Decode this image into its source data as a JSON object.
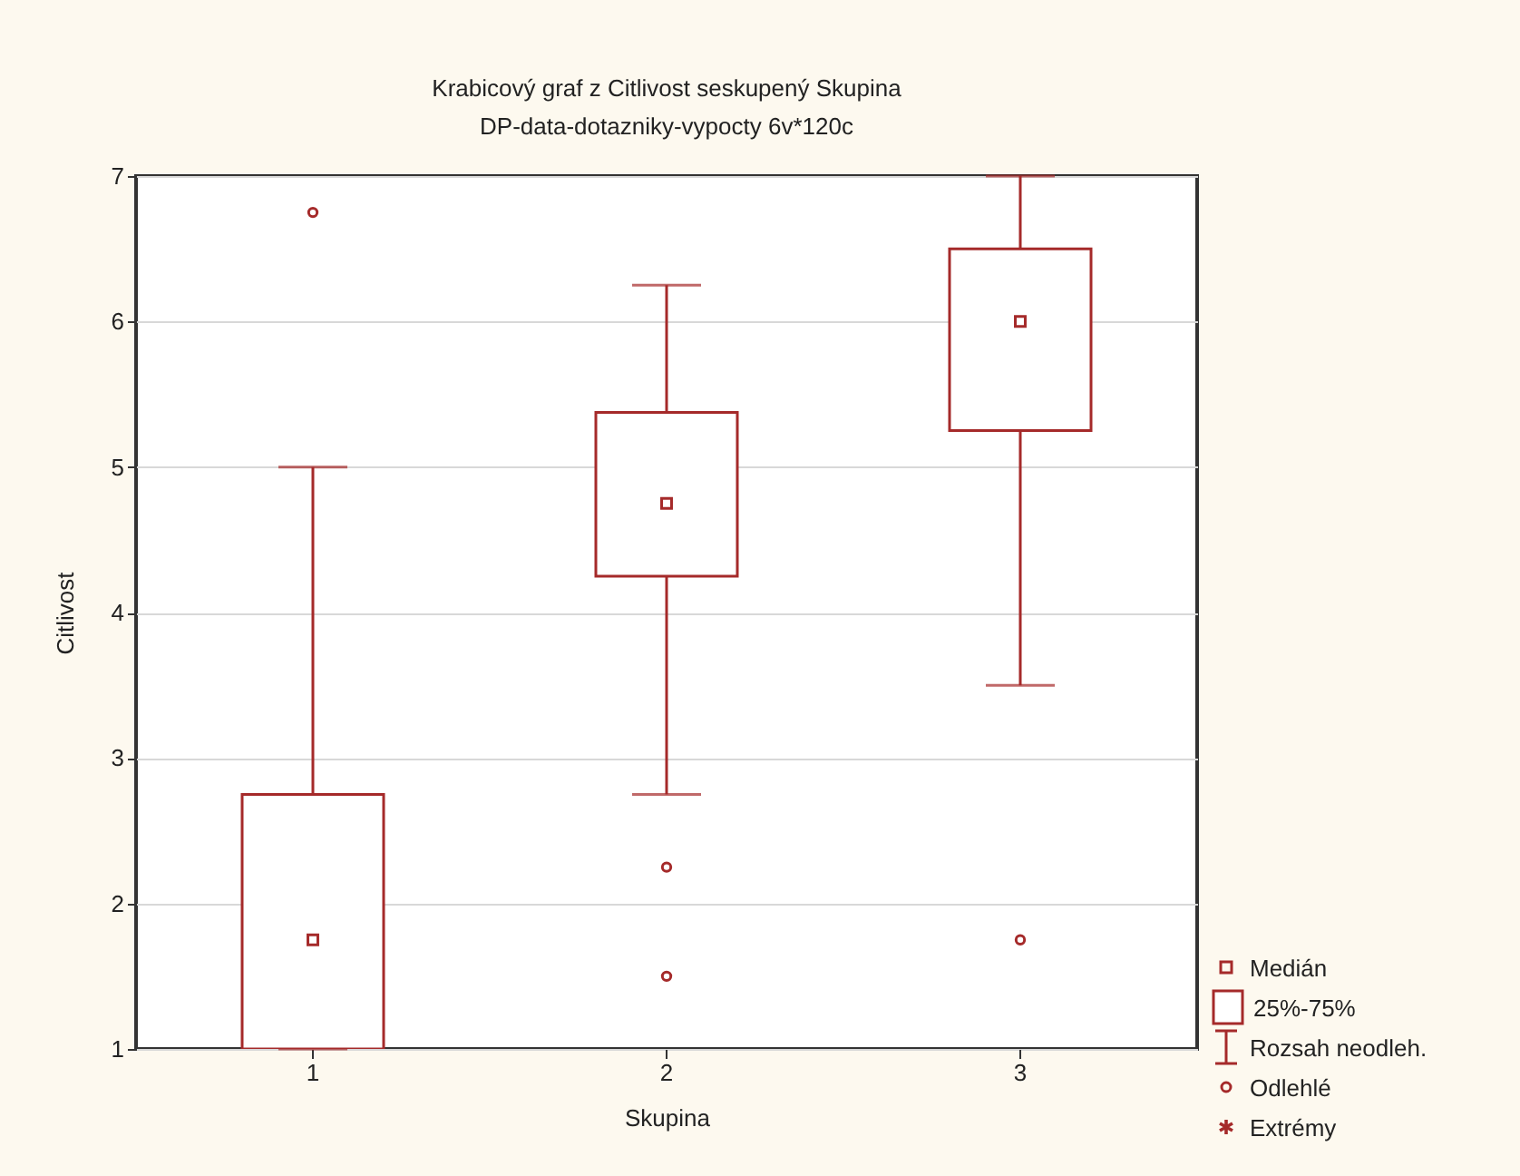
{
  "chart_data": {
    "type": "box",
    "title": "Krabicový graf z Citlivost seskupený Skupina",
    "subtitle": "DP-data-dotazniky-vypocty 6v*120c",
    "xlabel": "Skupina",
    "ylabel": "Citlivost",
    "categories": [
      "1",
      "2",
      "3"
    ],
    "boxes": [
      {
        "low": 1,
        "q1": 1,
        "median": 1.75,
        "q3": 2.75,
        "high": 5,
        "outliers": [
          6.75
        ]
      },
      {
        "low": 2.75,
        "q1": 4.25,
        "median": 4.75,
        "q3": 5.375,
        "high": 6.25,
        "outliers": [
          2.25,
          1.5
        ]
      },
      {
        "low": 3.5,
        "q1": 5.25,
        "median": 6,
        "q3": 6.5,
        "high": 7,
        "outliers": [
          1.75
        ]
      }
    ],
    "color": "#a52a2a",
    "ylim": [
      1,
      7
    ],
    "yticks": [
      1,
      2,
      3,
      4,
      5,
      6,
      7
    ],
    "grid": "y",
    "annotations": [
      "Medián",
      "25%-75%",
      "Rozsah neodleh.",
      "Odlehlé",
      "Extrémy"
    ]
  }
}
